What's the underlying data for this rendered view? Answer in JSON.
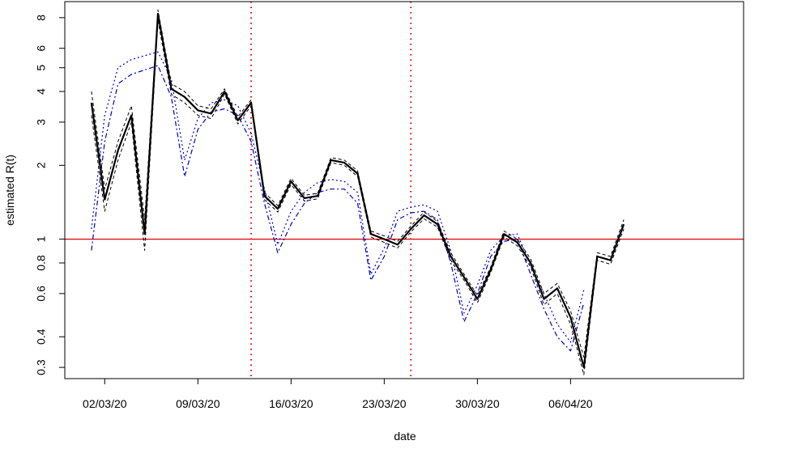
{
  "chart_data": {
    "type": "line",
    "xlabel": "date",
    "ylabel": "estimated R(t)",
    "log_y": true,
    "x": [
      "01/03/20",
      "02/03/20",
      "03/03/20",
      "04/03/20",
      "05/03/20",
      "06/03/20",
      "07/03/20",
      "08/03/20",
      "09/03/20",
      "10/03/20",
      "11/03/20",
      "12/03/20",
      "13/03/20",
      "14/03/20",
      "15/03/20",
      "16/03/20",
      "17/03/20",
      "18/03/20",
      "19/03/20",
      "20/03/20",
      "21/03/20",
      "22/03/20",
      "23/03/20",
      "24/03/20",
      "25/03/20",
      "26/03/20",
      "27/03/20",
      "28/03/20",
      "29/03/20",
      "30/03/20",
      "31/03/20",
      "01/04/20",
      "02/04/20",
      "03/04/20",
      "04/04/20",
      "05/04/20",
      "06/04/20",
      "07/04/20",
      "08/04/20",
      "09/04/20",
      "10/04/20"
    ],
    "xlim": [
      "28/02/20",
      "19/04/20"
    ],
    "xticks": [
      "02/03/20",
      "09/03/20",
      "16/03/20",
      "23/03/20",
      "30/03/20",
      "06/04/20"
    ],
    "ylim": [
      0.27,
      9.3
    ],
    "yticks": [
      0.3,
      0.4,
      0.6,
      0.8,
      1,
      2,
      3,
      4,
      5,
      6,
      8
    ],
    "hline": 1,
    "hline_color": "#e00000",
    "vlines": [
      "13/03/20",
      "25/03/20"
    ],
    "vline_color": "#e00000",
    "series": [
      {
        "color": "#0000cc",
        "style": "dotted",
        "width": 1.2,
        "values": [
          1.1,
          3.2,
          5.0,
          5.4,
          5.6,
          5.8,
          4.5,
          2.1,
          3.1,
          3.6,
          3.7,
          3.5,
          2.7,
          1.6,
          0.95,
          1.3,
          1.55,
          1.7,
          1.75,
          1.72,
          1.55,
          0.72,
          0.92,
          1.3,
          1.35,
          1.38,
          1.3,
          0.9,
          0.5,
          0.65,
          0.9,
          1.03,
          1.05,
          0.78,
          0.6,
          0.45,
          0.38,
          0.62,
          null,
          null,
          null
        ]
      },
      {
        "color": "#0000cc",
        "style": "dashdot",
        "width": 1.2,
        "values": [
          0.9,
          2.5,
          4.3,
          4.7,
          4.9,
          5.1,
          3.8,
          1.8,
          2.8,
          3.3,
          3.4,
          3.2,
          2.5,
          1.4,
          0.88,
          1.15,
          1.4,
          1.55,
          1.6,
          1.6,
          1.4,
          0.68,
          0.85,
          1.2,
          1.28,
          1.3,
          1.2,
          0.8,
          0.46,
          0.6,
          0.85,
          0.98,
          1.0,
          0.72,
          0.52,
          0.4,
          0.35,
          0.55,
          null,
          null,
          null
        ]
      },
      {
        "color": "#000000",
        "style": "dashed",
        "width": 1,
        "values": [
          4.0,
          1.6,
          2.5,
          3.5,
          1.2,
          8.6,
          4.3,
          4.0,
          3.5,
          3.4,
          4.1,
          3.15,
          3.7,
          1.55,
          1.37,
          1.77,
          1.51,
          1.54,
          2.15,
          2.1,
          1.9,
          1.08,
          1.03,
          0.98,
          1.13,
          1.29,
          1.18,
          0.88,
          0.72,
          0.59,
          0.77,
          1.08,
          1.0,
          0.83,
          0.6,
          0.66,
          0.51,
          0.33,
          0.88,
          0.85,
          1.2
        ]
      },
      {
        "color": "#000000",
        "style": "dashed",
        "width": 1,
        "values": [
          3.2,
          1.3,
          2.1,
          3.0,
          0.9,
          7.8,
          3.9,
          3.6,
          3.2,
          3.1,
          3.9,
          2.95,
          3.5,
          1.45,
          1.29,
          1.67,
          1.43,
          1.46,
          2.05,
          2.0,
          1.8,
          1.02,
          0.97,
          0.92,
          1.07,
          1.21,
          1.12,
          0.82,
          0.68,
          0.55,
          0.73,
          1.02,
          0.94,
          0.77,
          0.54,
          0.6,
          0.45,
          0.28,
          0.82,
          0.79,
          1.1
        ]
      },
      {
        "color": "#000000",
        "style": "solid",
        "width": 2.2,
        "values": [
          3.6,
          1.45,
          2.3,
          3.2,
          1.05,
          8.3,
          4.1,
          3.8,
          3.35,
          3.25,
          4.0,
          3.05,
          3.6,
          1.5,
          1.33,
          1.72,
          1.47,
          1.5,
          2.1,
          2.05,
          1.85,
          1.05,
          1.0,
          0.95,
          1.1,
          1.25,
          1.15,
          0.85,
          0.7,
          0.57,
          0.75,
          1.05,
          0.97,
          0.8,
          0.57,
          0.63,
          0.48,
          0.3,
          0.85,
          0.82,
          1.15
        ]
      }
    ]
  }
}
